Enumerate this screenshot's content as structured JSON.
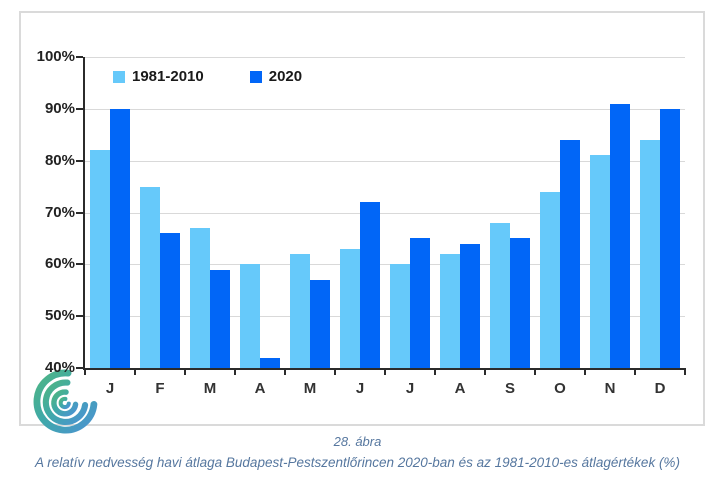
{
  "figure": {
    "caption_line1": "28. ábra",
    "caption_line2": "A relatív nedvesség havi átlaga Budapest-Pestszentlőrincen 2020-ban és az 1981-2010-es átlagértékek (%)"
  },
  "chart_data": {
    "type": "bar",
    "categories": [
      "J",
      "F",
      "M",
      "A",
      "M",
      "J",
      "J",
      "A",
      "S",
      "O",
      "N",
      "D"
    ],
    "series": [
      {
        "name": "1981-2010",
        "color": "#66C9FA",
        "values": [
          82,
          75,
          67,
          60,
          62,
          63,
          60,
          62,
          68,
          74,
          81,
          84
        ]
      },
      {
        "name": "2020",
        "color": "#0166F7",
        "values": [
          90,
          66,
          59,
          42,
          57,
          72,
          65,
          64,
          65,
          84,
          91,
          90
        ]
      }
    ],
    "title": "",
    "xlabel": "",
    "ylabel": "",
    "ylim": [
      40,
      100
    ],
    "ytick_step": 10,
    "ytick_suffix": "%",
    "grid": true,
    "legend_position": "top-left-inside"
  },
  "colors": {
    "gridline": "#D9D9D9",
    "axis": "#2B2B2B",
    "frame_border": "#DADADA",
    "caption_text": "#56779F"
  },
  "logo": {
    "name": "met-service-swirl-logo"
  }
}
